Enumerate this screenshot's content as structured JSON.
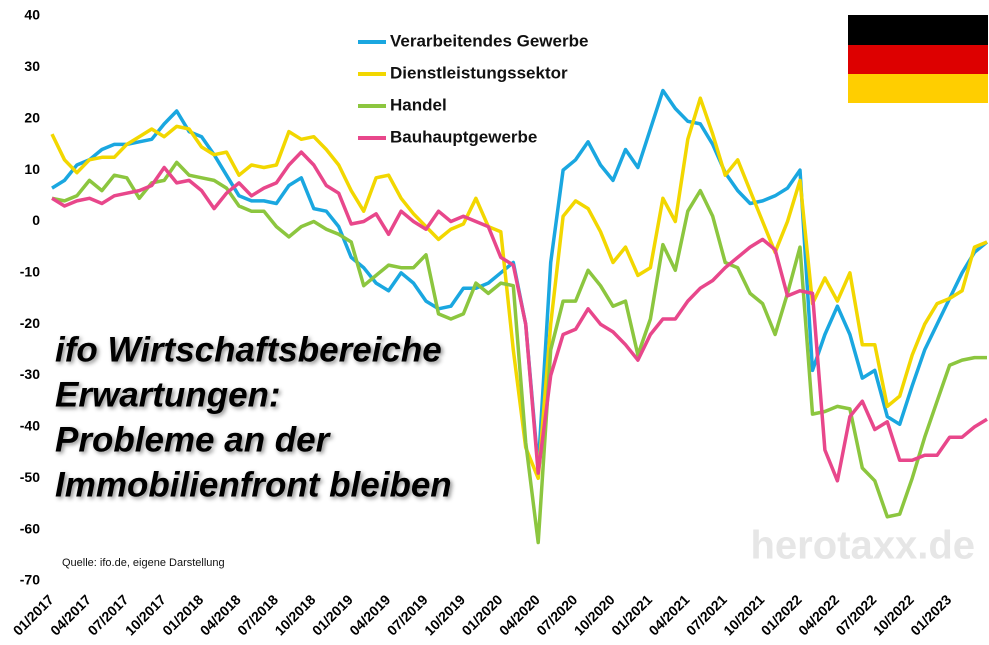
{
  "chart_data": {
    "type": "line",
    "title": [
      "ifo Wirtschaftsbereiche",
      "Erwartungen:",
      "Probleme an der",
      "Immobilienfront bleiben"
    ],
    "source": "Quelle: ifo.de, eigene Darstellung",
    "watermark": "herotaxx.de",
    "categories": [
      "01/2017",
      null,
      null,
      "04/2017",
      null,
      null,
      "07/2017",
      null,
      null,
      "10/2017",
      null,
      null,
      "01/2018",
      null,
      null,
      "04/2018",
      null,
      null,
      "07/2018",
      null,
      null,
      "10/2018",
      null,
      null,
      "01/2019",
      null,
      null,
      "04/2019",
      null,
      null,
      "07/2019",
      null,
      null,
      "10/2019",
      null,
      null,
      "01/2020",
      null,
      null,
      "04/2020",
      null,
      null,
      "07/2020",
      null,
      null,
      "10/2020",
      null,
      null,
      "01/2021",
      null,
      null,
      "04/2021",
      null,
      null,
      "07/2021",
      null,
      null,
      "10/2021",
      null,
      null,
      "01/2022",
      null,
      null,
      "04/2022",
      null,
      null,
      "07/2022",
      null,
      null,
      "10/2022",
      null,
      null,
      "01/2023",
      null,
      null,
      null
    ],
    "series": [
      {
        "name": "Verarbeitendes Gewerbe",
        "color": "#1aa7e0",
        "values": [
          6.5,
          8,
          11,
          12,
          14,
          15,
          15,
          15.5,
          16,
          19,
          21.5,
          17.5,
          16.5,
          13,
          9,
          5,
          4,
          4,
          3.5,
          7,
          8.5,
          2.5,
          2,
          -1,
          -7,
          -9,
          -12,
          -13.5,
          -10,
          -12,
          -15.5,
          -17,
          -16.5,
          -13,
          -13,
          -12,
          -10,
          -8,
          -20,
          -48,
          -8,
          10,
          12,
          15.5,
          11,
          8,
          14,
          10.5,
          18,
          25.5,
          22,
          19.5,
          19,
          15,
          9.5,
          6,
          3.5,
          4,
          5,
          6.5,
          10,
          -29,
          -22,
          -16.5,
          -22,
          -30.5,
          -29,
          -38,
          -39.5,
          -32,
          -25,
          -20,
          -15,
          -10,
          -6,
          -4
        ]
      },
      {
        "name": "Dienstleistungssektor",
        "color": "#f2d700",
        "values": [
          17,
          12,
          9.5,
          12,
          12.5,
          12.5,
          15,
          16.5,
          18,
          16.5,
          18.5,
          18,
          14.5,
          13,
          13.5,
          9,
          11,
          10.5,
          11,
          17.5,
          16,
          16.5,
          14,
          11,
          6,
          2,
          8.5,
          9,
          4.5,
          1.5,
          -1,
          -3.5,
          -1.5,
          -0.5,
          4.5,
          -1,
          -2,
          -25,
          -44,
          -50,
          -20,
          1,
          4,
          2.5,
          -2,
          -8,
          -5,
          -10.5,
          -9,
          4.5,
          0,
          16,
          24,
          17,
          9,
          12,
          6,
          0,
          -6,
          0,
          8,
          -16,
          -11,
          -15.5,
          -10,
          -24,
          -24,
          -36,
          -34,
          -26,
          -20,
          -16,
          -15,
          -13.5,
          -5,
          -4
        ]
      },
      {
        "name": "Handel",
        "color": "#8cc63f",
        "values": [
          4.5,
          4,
          5,
          8,
          6,
          9,
          8.5,
          4.5,
          7.5,
          8,
          11.5,
          9,
          8.5,
          8,
          6.5,
          3,
          2,
          2,
          -1,
          -3,
          -1,
          0,
          -1.5,
          -2.5,
          -4,
          -12.5,
          -10.5,
          -8.5,
          -9,
          -9,
          -6.5,
          -18,
          -19,
          -18,
          -12,
          -14,
          -12,
          -12.5,
          -43,
          -62.5,
          -25,
          -15.5,
          -15.5,
          -9.5,
          -12.5,
          -16.5,
          -15.5,
          -26,
          -19,
          -4.5,
          -9.5,
          2,
          6,
          1,
          -8,
          -9,
          -14,
          -16,
          -22,
          -14,
          -5,
          -37.5,
          -37,
          -36,
          -36.5,
          -48,
          -50.5,
          -57.5,
          -57,
          -50,
          -42,
          -35,
          -28,
          -27,
          -26.5,
          -26.5
        ]
      },
      {
        "name": "Bauhauptgewerbe",
        "color": "#e8478b",
        "values": [
          4.5,
          3,
          4,
          4.5,
          3.5,
          5,
          5.5,
          6,
          7,
          10.5,
          7.5,
          8,
          6,
          2.5,
          5.5,
          7.5,
          5,
          6.5,
          7.5,
          11,
          13.5,
          11,
          7,
          5.5,
          -0.5,
          0,
          1.5,
          -2.5,
          2,
          0,
          -1.5,
          2,
          0,
          1,
          0,
          -1,
          -7,
          -8.5,
          -20,
          -49,
          -30,
          -22,
          -21,
          -17,
          -20,
          -21.5,
          -24,
          -27,
          -22,
          -19,
          -19,
          -15.5,
          -13,
          -11.5,
          -9,
          -7,
          -5,
          -3.5,
          -5.5,
          -14.5,
          -13.5,
          -14,
          -44.5,
          -50.5,
          -38,
          -35,
          -40.5,
          -39,
          -46.5,
          -46.5,
          -45.5,
          -45.5,
          -42,
          -42,
          -40,
          -38.5
        ]
      }
    ],
    "ylim": [
      -70,
      40
    ],
    "yticks": [
      -70,
      -60,
      -50,
      -40,
      -30,
      -20,
      -10,
      0,
      10,
      20,
      30,
      40
    ],
    "grid": false
  }
}
